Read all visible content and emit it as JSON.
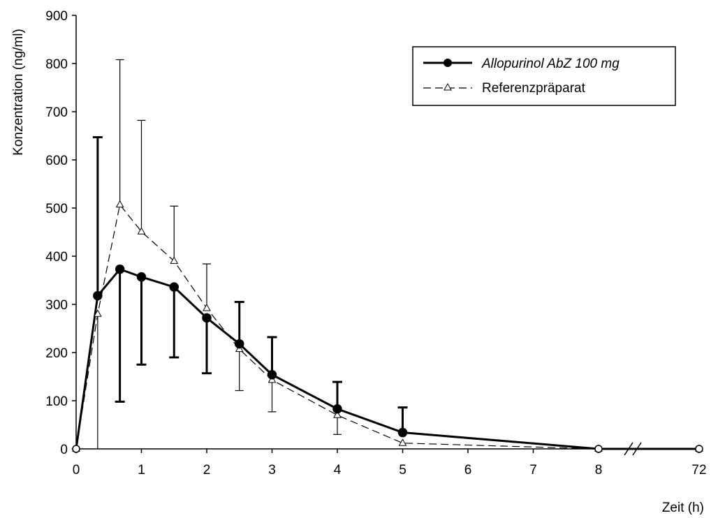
{
  "chart_data": {
    "type": "line",
    "xlabel": "Zeit (h)",
    "ylabel": "Konzentration (ng/ml)",
    "ylim": [
      0,
      900
    ],
    "y_ticks": [
      0,
      100,
      200,
      300,
      400,
      500,
      600,
      700,
      800,
      900
    ],
    "x_ticks": [
      0,
      1,
      2,
      3,
      4,
      5,
      6,
      7,
      8,
      72
    ],
    "x_axis_break": "between 8 and 72",
    "legend_position": "top-right",
    "grid": false,
    "series": [
      {
        "name": "Allopurinol AbZ 100 mg",
        "style": "solid, filled circle markers",
        "color": "#000000",
        "x": [
          0,
          0.33,
          0.67,
          1,
          1.5,
          2,
          2.5,
          3,
          4,
          5,
          8,
          72
        ],
        "y": [
          0,
          318,
          373,
          357,
          336,
          272,
          218,
          154,
          83,
          34,
          0,
          0
        ],
        "error_upper": [
          null,
          647,
          373,
          357,
          336,
          272,
          305,
          232,
          139,
          86,
          null,
          null
        ],
        "error_lower": [
          null,
          318,
          98,
          175,
          190,
          157,
          218,
          154,
          83,
          34,
          null,
          null
        ]
      },
      {
        "name": "Referenzpräparat",
        "style": "dashed, open triangle markers",
        "color": "#000000",
        "x": [
          0,
          0.33,
          0.67,
          1,
          1.5,
          2,
          2.5,
          3,
          4,
          5,
          8,
          72
        ],
        "y": [
          0,
          280,
          507,
          451,
          390,
          292,
          207,
          143,
          70,
          12,
          0,
          0
        ],
        "error_upper": [
          null,
          280,
          808,
          682,
          504,
          384,
          207,
          143,
          70,
          12,
          null,
          null
        ],
        "error_lower": [
          null,
          0,
          507,
          451,
          390,
          292,
          121,
          77,
          30,
          12,
          null,
          null
        ]
      }
    ]
  }
}
